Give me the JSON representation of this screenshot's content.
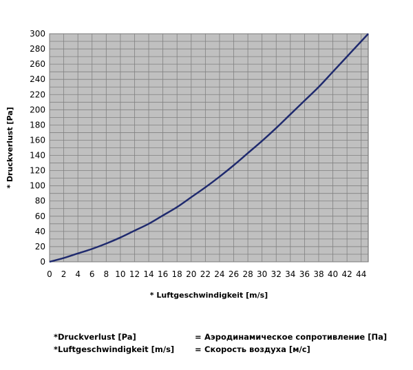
{
  "chart_data": {
    "type": "line",
    "xlabel": "* Luftgeschwindigkeit [m/s]",
    "ylabel": "* Druckverlust [Pa]",
    "xlim": [
      0,
      45
    ],
    "ylim": [
      0,
      300
    ],
    "xticks": [
      0,
      2,
      4,
      6,
      8,
      10,
      12,
      14,
      16,
      18,
      20,
      22,
      24,
      26,
      28,
      30,
      32,
      34,
      36,
      38,
      40,
      42,
      44
    ],
    "yticks": [
      0,
      20,
      40,
      60,
      80,
      100,
      120,
      140,
      160,
      180,
      200,
      220,
      240,
      260,
      280,
      300
    ],
    "grid": true,
    "plot_background": "#c0c0c0",
    "grid_color": "#808080",
    "line_color": "#1f2a6e",
    "series": [
      {
        "x": [
          0,
          2,
          4,
          6,
          8,
          10,
          12,
          14,
          16,
          18,
          20,
          22,
          24,
          26,
          28,
          30,
          32,
          34,
          36,
          38,
          40,
          42,
          45
        ],
        "values": [
          0,
          5,
          11,
          17,
          24,
          32,
          41,
          50,
          61,
          72,
          85,
          98,
          112,
          127,
          143,
          159,
          176,
          194,
          212,
          230,
          250,
          270,
          300
        ]
      }
    ]
  },
  "legend": [
    {
      "term": "*Druckverlust [Pa]",
      "eq": "=",
      "translation": "Аэродинамическое сопротивление [Па]"
    },
    {
      "term": "*Luftgeschwindigkeit [m/s]",
      "eq": "=",
      "translation": "Скорость воздуха [м/с]"
    }
  ]
}
